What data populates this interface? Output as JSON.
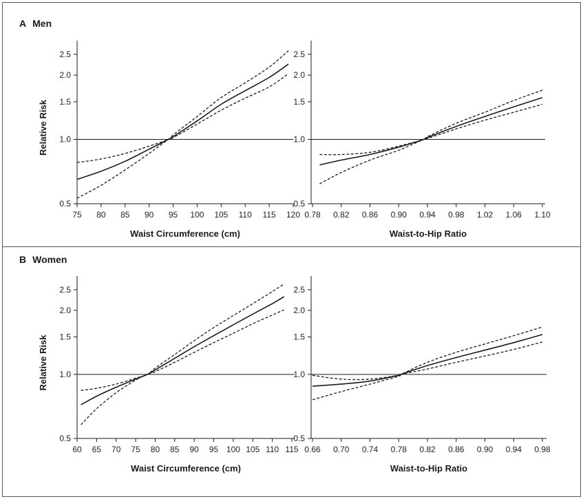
{
  "panels": [
    {
      "letter": "A",
      "title": "Men"
    },
    {
      "letter": "B",
      "title": "Women"
    }
  ],
  "colors": {
    "line": "#1a1a1a",
    "border": "#555555",
    "background": "#ffffff"
  },
  "chart_data": [
    {
      "type": "line",
      "panel": "A",
      "xlabel": "Waist Circumference (cm)",
      "ylabel": "Relative Risk",
      "yscale": "log",
      "ylim": [
        0.5,
        2.9
      ],
      "xlim": [
        75,
        120
      ],
      "yticks": [
        "0.5",
        "1.0",
        "1.5",
        "2.0",
        "2.5"
      ],
      "xticks": [
        "75",
        "80",
        "85",
        "90",
        "95",
        "100",
        "105",
        "110",
        "115",
        "120"
      ],
      "reference_line": 1.0,
      "x": [
        75,
        80,
        85,
        90,
        94,
        95,
        100,
        105,
        110,
        115,
        119
      ],
      "series": [
        {
          "role": "estimate",
          "style": "solid",
          "values": [
            0.65,
            0.71,
            0.79,
            0.9,
            1.0,
            1.03,
            1.22,
            1.46,
            1.69,
            1.95,
            2.25
          ]
        },
        {
          "role": "upper-ci",
          "style": "dashed",
          "values": [
            0.78,
            0.81,
            0.86,
            0.93,
            1.0,
            1.05,
            1.28,
            1.57,
            1.84,
            2.18,
            2.6
          ]
        },
        {
          "role": "lower-ci",
          "style": "dashed",
          "values": [
            0.53,
            0.61,
            0.72,
            0.86,
            1.0,
            1.02,
            1.18,
            1.37,
            1.56,
            1.76,
            2.03
          ]
        }
      ]
    },
    {
      "type": "line",
      "panel": "A",
      "xlabel": "Waist-to-Hip Ratio",
      "ylabel": "",
      "yscale": "log",
      "ylim": [
        0.5,
        2.9
      ],
      "xlim": [
        0.78,
        1.1
      ],
      "yticks": [
        "0.5",
        "1.0",
        "1.5",
        "2.0",
        "2.5"
      ],
      "xticks": [
        "0.78",
        "0.82",
        "0.86",
        "0.90",
        "0.94",
        "0.98",
        "1.02",
        "1.06",
        "1.10"
      ],
      "reference_line": 1.0,
      "x": [
        0.79,
        0.82,
        0.86,
        0.9,
        0.935,
        0.94,
        0.98,
        1.02,
        1.06,
        1.1
      ],
      "series": [
        {
          "role": "estimate",
          "style": "solid",
          "values": [
            0.76,
            0.8,
            0.85,
            0.92,
            1.0,
            1.02,
            1.15,
            1.28,
            1.42,
            1.57
          ]
        },
        {
          "role": "upper-ci",
          "style": "dashed",
          "values": [
            0.85,
            0.85,
            0.87,
            0.93,
            1.0,
            1.03,
            1.19,
            1.34,
            1.52,
            1.7
          ]
        },
        {
          "role": "lower-ci",
          "style": "dashed",
          "values": [
            0.62,
            0.7,
            0.8,
            0.89,
            1.0,
            1.01,
            1.12,
            1.23,
            1.34,
            1.46
          ]
        }
      ]
    },
    {
      "type": "line",
      "panel": "B",
      "xlabel": "Waist Circumference (cm)",
      "ylabel": "Relative Risk",
      "yscale": "log",
      "ylim": [
        0.5,
        2.9
      ],
      "xlim": [
        60,
        116
      ],
      "yticks": [
        "0.5",
        "1.0",
        "1.5",
        "2.0",
        "2.5"
      ],
      "xticks": [
        "60",
        "65",
        "70",
        "75",
        "80",
        "85",
        "90",
        "95",
        "100",
        "105",
        "110",
        "115"
      ],
      "reference_line": 1.0,
      "x": [
        61,
        65,
        70,
        75,
        78,
        80,
        85,
        90,
        95,
        100,
        105,
        110,
        113
      ],
      "series": [
        {
          "role": "estimate",
          "style": "solid",
          "values": [
            0.72,
            0.79,
            0.87,
            0.95,
            1.0,
            1.05,
            1.19,
            1.35,
            1.52,
            1.71,
            1.92,
            2.15,
            2.32
          ]
        },
        {
          "role": "upper-ci",
          "style": "dashed",
          "values": [
            0.84,
            0.86,
            0.9,
            0.96,
            1.0,
            1.07,
            1.24,
            1.44,
            1.66,
            1.89,
            2.15,
            2.45,
            2.66
          ]
        },
        {
          "role": "lower-ci",
          "style": "dashed",
          "values": [
            0.58,
            0.69,
            0.82,
            0.94,
            1.0,
            1.03,
            1.14,
            1.27,
            1.41,
            1.56,
            1.73,
            1.9,
            2.01
          ]
        }
      ]
    },
    {
      "type": "line",
      "panel": "B",
      "xlabel": "Waist-to-Hip Ratio",
      "ylabel": "",
      "yscale": "log",
      "ylim": [
        0.5,
        2.9
      ],
      "xlim": [
        0.66,
        0.99
      ],
      "yticks": [
        "0.5",
        "1.0",
        "1.5",
        "2.0",
        "2.5"
      ],
      "xticks": [
        "0.66",
        "0.70",
        "0.74",
        "0.78",
        "0.82",
        "0.86",
        "0.90",
        "0.94",
        "0.98"
      ],
      "reference_line": 1.0,
      "x": [
        0.66,
        0.7,
        0.74,
        0.78,
        0.783,
        0.82,
        0.86,
        0.9,
        0.94,
        0.98
      ],
      "series": [
        {
          "role": "estimate",
          "style": "solid",
          "values": [
            0.88,
            0.9,
            0.93,
            0.99,
            1.0,
            1.1,
            1.2,
            1.3,
            1.41,
            1.54
          ]
        },
        {
          "role": "upper-ci",
          "style": "dashed",
          "values": [
            0.99,
            0.95,
            0.95,
            0.99,
            1.0,
            1.14,
            1.27,
            1.39,
            1.52,
            1.67
          ]
        },
        {
          "role": "lower-ci",
          "style": "dashed",
          "values": [
            0.76,
            0.83,
            0.9,
            0.98,
            1.0,
            1.06,
            1.14,
            1.22,
            1.31,
            1.42
          ]
        }
      ]
    }
  ]
}
